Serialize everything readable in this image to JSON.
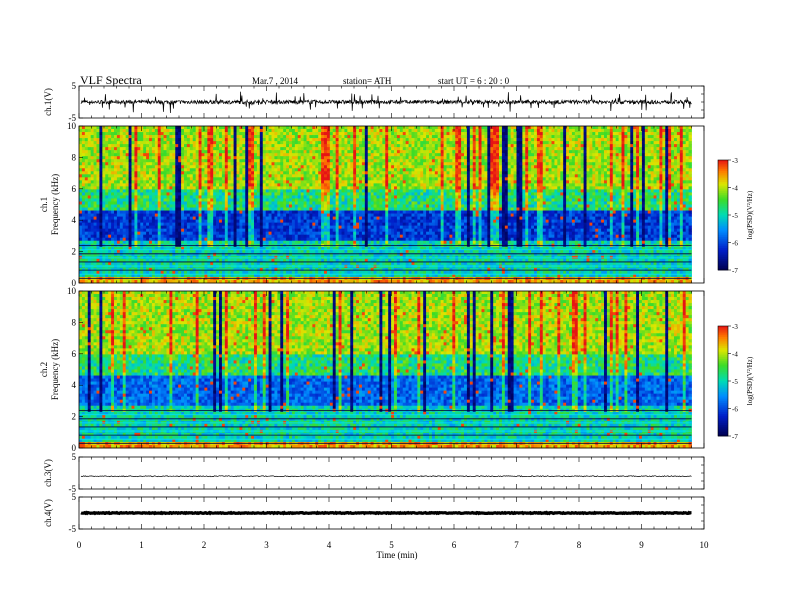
{
  "header": {
    "title": "VLF  Spectra",
    "date": "Mar.7  , 2014",
    "station": "station= ATH",
    "start": "start  UT  =   6  : 20 : 0"
  },
  "chart_data": [
    {
      "type": "line",
      "panel": "ch1-waveform",
      "ylabel": "ch.1(V)",
      "ylim": [
        -5,
        5
      ],
      "yticks": [
        "5",
        "-5"
      ],
      "baseline": 0,
      "xlim": [
        0,
        9.8
      ]
    },
    {
      "type": "heatmap",
      "panel": "ch1-spectrogram",
      "ylabel_line1": "ch.1",
      "ylabel_line2": "Frequency  (kHz)",
      "ylim": [
        0,
        10
      ],
      "yticks": [
        "0",
        "2",
        "4",
        "6",
        "8",
        "10"
      ],
      "xlim": [
        0,
        9.8
      ],
      "colorbar": {
        "label": "log(PSD)(V²/Hz)",
        "ticks": [
          "-3",
          "-4",
          "-5",
          "-6",
          "-7"
        ],
        "range": [
          -7,
          -3
        ]
      }
    },
    {
      "type": "heatmap",
      "panel": "ch2-spectrogram",
      "ylabel_line1": "ch.2",
      "ylabel_line2": "Frequency  (kHz)",
      "ylim": [
        0,
        10
      ],
      "yticks": [
        "0",
        "2",
        "4",
        "6",
        "8",
        "10"
      ],
      "xlim": [
        0,
        9.8
      ],
      "colorbar": {
        "label": "log(PSD)(V²/Hz)",
        "ticks": [
          "-3",
          "-4",
          "-5",
          "-6",
          "-7"
        ],
        "range": [
          -7,
          -3
        ]
      }
    },
    {
      "type": "line",
      "panel": "ch3-waveform",
      "ylabel": "ch.3(V)",
      "ylim": [
        -5,
        5
      ],
      "yticks": [
        "5",
        "-5"
      ],
      "baseline": -1,
      "xlim": [
        0,
        9.8
      ]
    },
    {
      "type": "line",
      "panel": "ch4-waveform",
      "ylabel": "ch.4(V)",
      "ylim": [
        -5,
        5
      ],
      "yticks": [
        "5",
        "-5"
      ],
      "baseline": 0,
      "xlim": [
        0,
        9.8
      ]
    }
  ],
  "xaxis": {
    "label": "Time  (min)",
    "range": [
      0,
      10
    ],
    "ticks": [
      "0",
      "1",
      "2",
      "3",
      "4",
      "5",
      "6",
      "7",
      "8",
      "9",
      "10"
    ]
  },
  "colors": {
    "low": "#000060",
    "mid": "#00d8a0",
    "high": "#e02020",
    "trace": "#000000"
  }
}
